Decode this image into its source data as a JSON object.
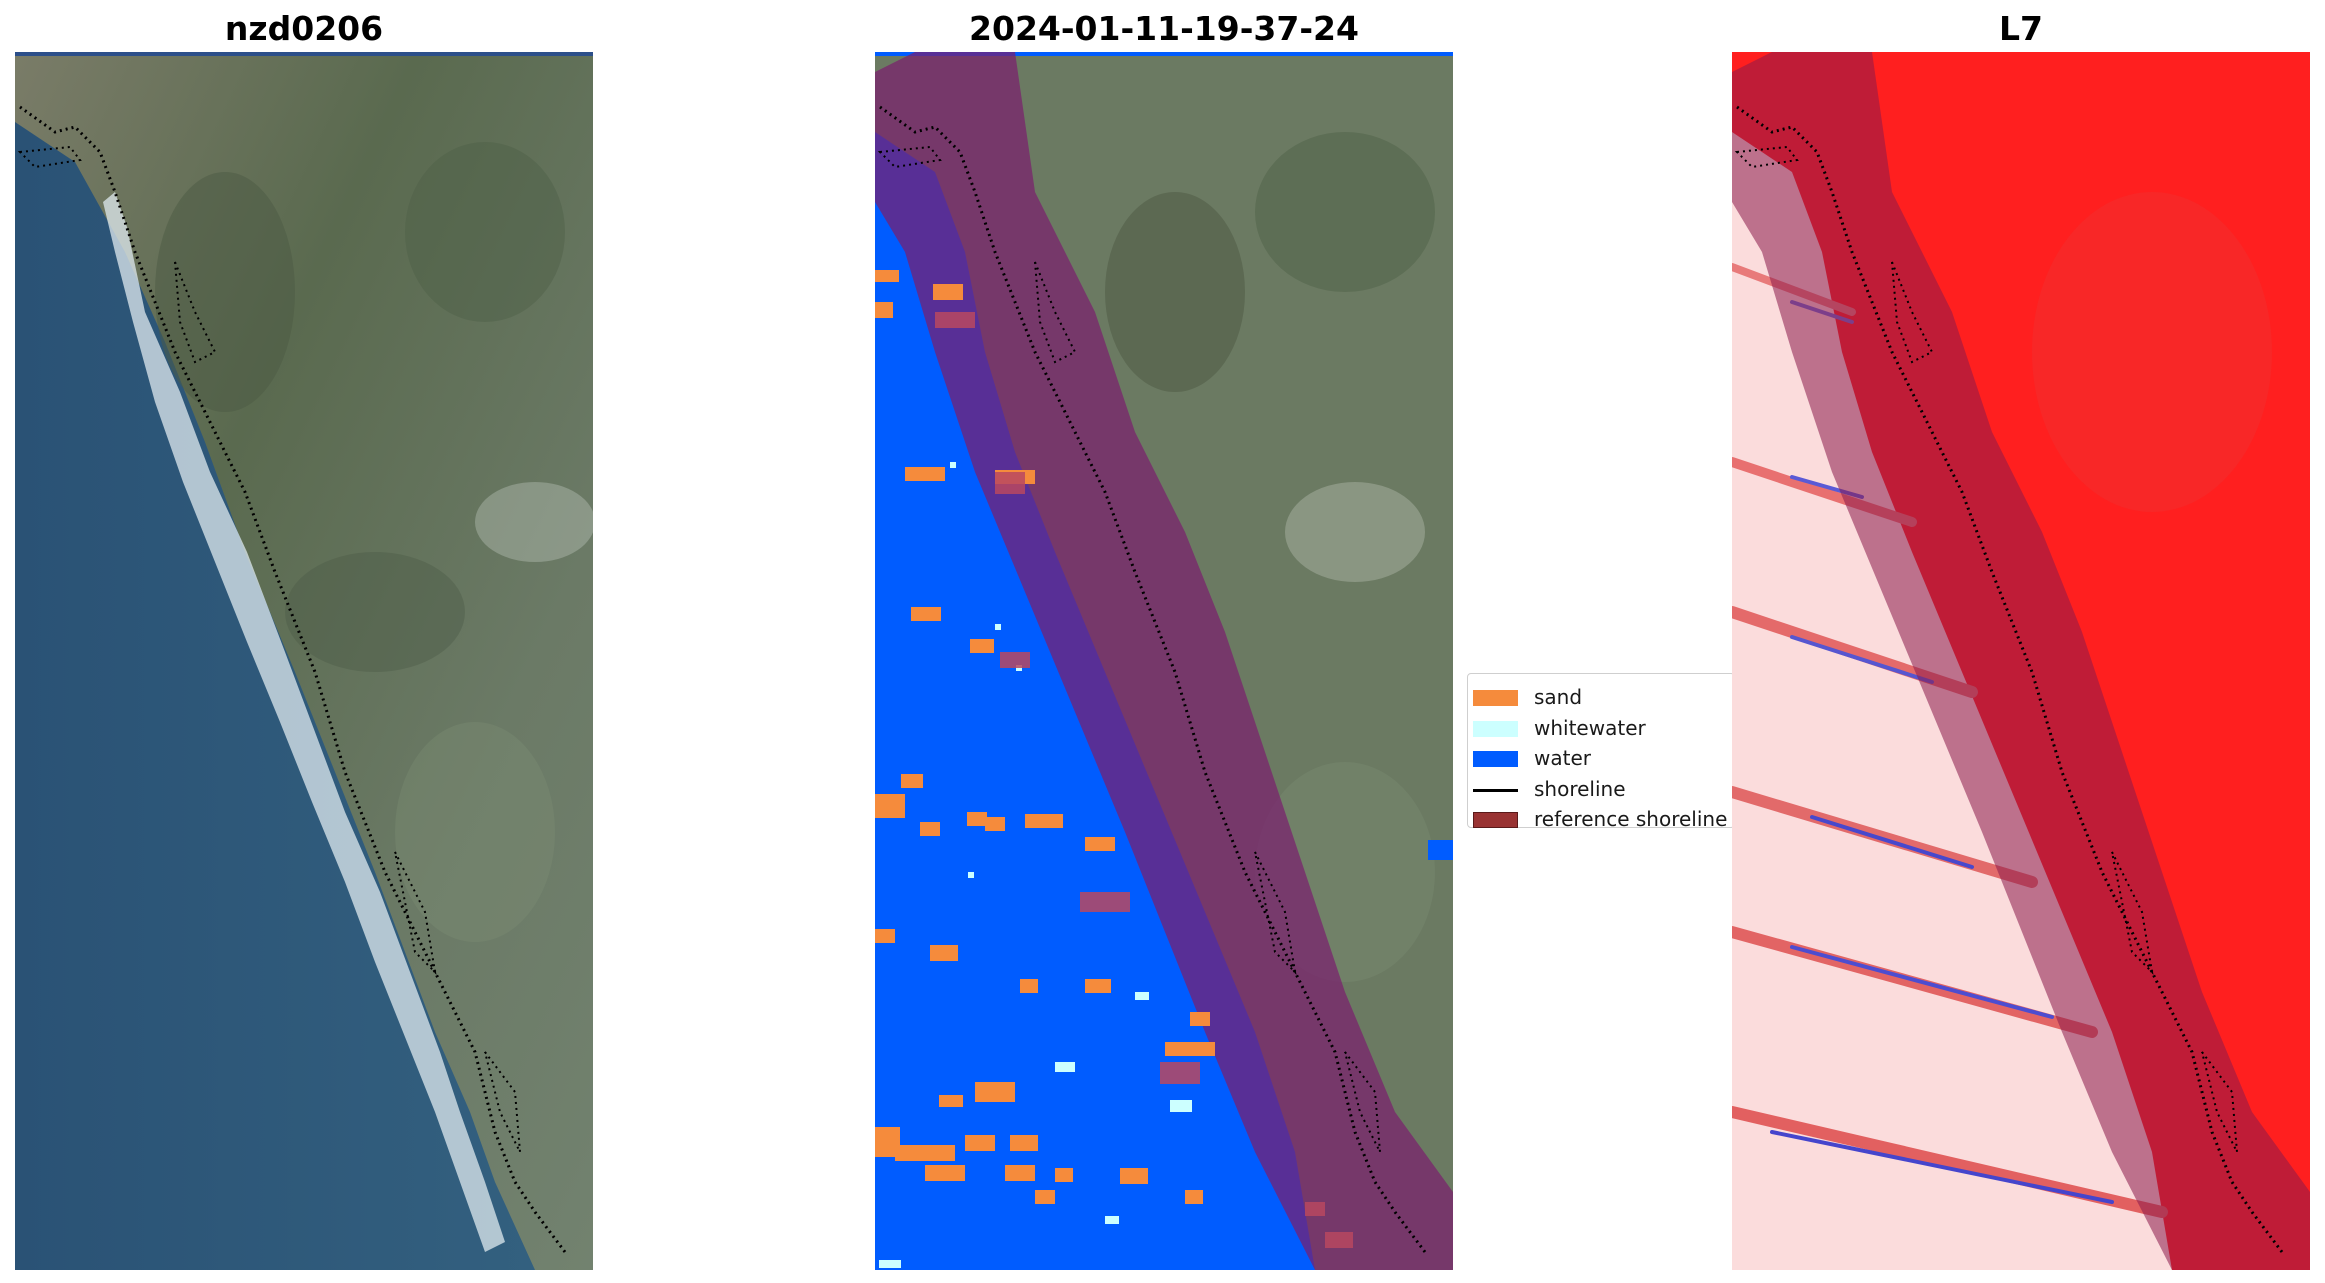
{
  "panels": [
    {
      "title": "nzd0206"
    },
    {
      "title": "2024-01-11-19-37-24"
    },
    {
      "title": "L7"
    }
  ],
  "legend": {
    "items": [
      {
        "label": "sand",
        "color": "#f58b3c",
        "kind": "patch"
      },
      {
        "label": "whitewater",
        "color": "#ccffff",
        "kind": "patch"
      },
      {
        "label": "water",
        "color": "#005cff",
        "kind": "patch"
      },
      {
        "label": "shoreline",
        "color": "#000000",
        "kind": "line"
      },
      {
        "label": "reference shoreline",
        "color": "#993333",
        "kind": "patch"
      }
    ]
  },
  "colors": {
    "land": "#5f6f55",
    "sea_rgb": "#2f5878",
    "surf": "#e8f1f5",
    "water_class": "#005cff",
    "sand_class": "#f58b3c",
    "buffer_overlay": "#8b1a4a",
    "index_land": "#ff1f1f",
    "index_sea": "#fbdada"
  }
}
